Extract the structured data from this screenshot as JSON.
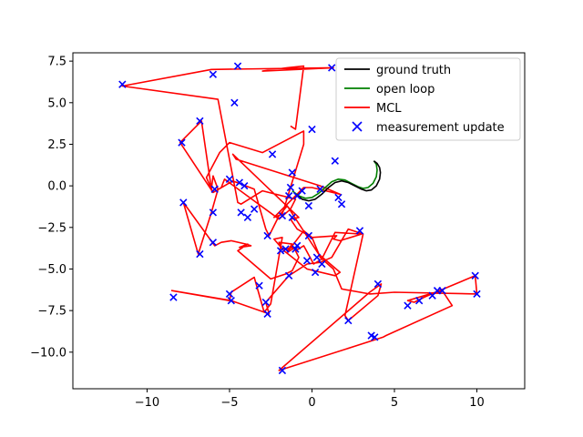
{
  "chart_data": {
    "type": "line",
    "title": "",
    "xlabel": "",
    "ylabel": "",
    "xlim": [
      -14.5,
      12.9
    ],
    "ylim": [
      -12.2,
      8.0
    ],
    "x_ticks": [
      -10,
      -5,
      0,
      5,
      10
    ],
    "x_tick_labels": [
      "−10",
      "−5",
      "0",
      "5",
      "10"
    ],
    "y_ticks": [
      7.5,
      5.0,
      2.5,
      0.0,
      -2.5,
      -5.0,
      -7.5,
      -10.0
    ],
    "y_tick_labels": [
      "7.5",
      "5.0",
      "2.5",
      "0.0",
      "−2.5",
      "−5.0",
      "−7.5",
      "−10.0"
    ],
    "grid": false,
    "legend_position": "top-right",
    "series": [
      {
        "name": "ground truth",
        "kind": "line",
        "color": "#000000",
        "x": [
          -1.0,
          -0.6,
          -0.2,
          0.2,
          0.6,
          1.0,
          1.4,
          1.8,
          2.2,
          2.6,
          3.0,
          3.3,
          3.6,
          3.9,
          4.1,
          4.15,
          4.1,
          3.95,
          3.75
        ],
        "y": [
          -0.5,
          -0.8,
          -0.9,
          -0.8,
          -0.5,
          -0.1,
          0.2,
          0.3,
          0.2,
          0.0,
          -0.2,
          -0.3,
          -0.25,
          0.0,
          0.4,
          0.8,
          1.1,
          1.35,
          1.5
        ]
      },
      {
        "name": "open loop",
        "kind": "line",
        "color": "#008000",
        "x": [
          -1.2,
          -0.8,
          -0.4,
          0.0,
          0.4,
          0.8,
          1.2,
          1.6,
          2.0,
          2.4,
          2.8,
          3.1,
          3.4,
          3.7,
          3.9,
          3.95,
          3.9,
          3.75
        ],
        "y": [
          -0.3,
          -0.6,
          -0.75,
          -0.7,
          -0.45,
          -0.1,
          0.25,
          0.4,
          0.35,
          0.15,
          -0.05,
          -0.15,
          -0.1,
          0.15,
          0.55,
          0.95,
          1.3,
          1.5
        ]
      },
      {
        "name": "MCL",
        "kind": "line",
        "color": "#ff0000",
        "x": [
          -1.5,
          -1.2,
          -2.0,
          -1.8,
          -1.0,
          -1.5,
          -0.5,
          0.0,
          1.5,
          1.3,
          1.7,
          3.0,
          1.4,
          0.6,
          0.1,
          -0.5,
          -1.0,
          -0.8,
          -1.2,
          -1.6,
          -2.5,
          -4.5,
          -3.9,
          -4.4,
          -3.7,
          -4.0,
          -4.9,
          -5.5,
          -5.9,
          -7.8,
          -6.9,
          -6.1,
          -5.7,
          -6.0,
          -6.1,
          -6.7,
          -8.0,
          -6.0,
          -4.8,
          -3.5,
          -2.8,
          -2.6,
          -2.0,
          -1.5,
          0.4,
          1.7,
          1.4,
          -0.3,
          -1.7,
          -2.3,
          -1.8,
          -2.5,
          -2.9,
          -3.5,
          -4.9,
          -5.0,
          -8.5,
          -4.9,
          -2.6,
          -2.8,
          -1.4,
          -0.3,
          0.5,
          1.2,
          2.2,
          3.1,
          2.0,
          2.2,
          4.0,
          4.2,
          3.5,
          -2.0,
          4.3,
          4.5,
          8.5,
          7.9,
          7.5,
          6.8,
          6.2,
          5.8,
          7.5,
          9.9,
          10.0,
          5.0,
          3.5,
          1.8,
          1.3,
          0.5,
          0.0,
          -0.9,
          -1.3,
          -0.8,
          -4.8,
          -4.6,
          0.5,
          1.7,
          0.0,
          -0.5,
          -2.3,
          -1.8,
          -0.5,
          -0.5,
          -3.0,
          -5.0,
          -5.6,
          -6.4,
          -6.0,
          -5.5,
          -5.3,
          -2.0,
          -1.3,
          -1.0,
          -3.0,
          -4.3,
          -4.5,
          -5.7,
          -11.5,
          -6.1,
          1.3,
          -3.0,
          -1.5,
          -0.5,
          -1.0,
          -1.3
        ],
        "y": [
          -3.9,
          -3.5,
          -3.4,
          -3.8,
          -3.7,
          -4.0,
          -2.7,
          -3.1,
          -3.0,
          -3.2,
          -3.3,
          -2.9,
          -2.8,
          -4.4,
          -4.7,
          -3.6,
          -3.9,
          -4.3,
          -5.1,
          -5.3,
          -5.6,
          -3.9,
          -3.5,
          -3.7,
          -3.6,
          -3.5,
          -3.3,
          -3.4,
          -3.6,
          -1.0,
          -4.1,
          -1.6,
          -0.2,
          0.6,
          -0.2,
          3.9,
          2.6,
          -0.4,
          0.3,
          -0.2,
          -2.6,
          -3.0,
          -1.8,
          -1.2,
          -4.1,
          -5.2,
          -5.4,
          -5.0,
          -3.9,
          -3.2,
          -3.1,
          -7.1,
          -7.6,
          -5.5,
          -6.4,
          -6.9,
          -6.3,
          -6.9,
          -7.7,
          -7.0,
          -5.4,
          -4.7,
          -4.6,
          -4.3,
          -2.6,
          -2.9,
          -7.8,
          -8.1,
          -6.6,
          -5.9,
          -6.4,
          -11.1,
          -9.1,
          -9.0,
          -7.2,
          -6.3,
          -6.4,
          -6.7,
          -7.0,
          -6.9,
          -6.4,
          -5.4,
          -6.5,
          -6.4,
          -6.5,
          -6.2,
          -5.0,
          -4.3,
          -3.1,
          -2.6,
          -2.0,
          -1.9,
          1.9,
          1.6,
          0.0,
          -0.5,
          -0.1,
          -0.1,
          -1.9,
          -1.7,
          2.5,
          3.3,
          2.0,
          2.6,
          2.0,
          0.5,
          -0.4,
          -0.1,
          0.4,
          -2.0,
          -1.4,
          -0.8,
          -0.3,
          -1.1,
          -1.0,
          5.2,
          6.0,
          7.0,
          7.1,
          6.9,
          7.1,
          7.2,
          3.4,
          3.6
        ]
      },
      {
        "name": "measurement update",
        "kind": "scatter",
        "color": "#0000ff",
        "x": [
          -11.5,
          -6.0,
          -4.5,
          1.2,
          -4.7,
          -6.8,
          -7.9,
          -2.4,
          0.0,
          1.4,
          -1.2,
          -5.0,
          -4.4,
          -4.1,
          -5.9,
          -7.8,
          -4.3,
          -3.5,
          -3.9,
          -6.0,
          -6.0,
          -6.8,
          -1.3,
          -0.6,
          -1.2,
          -1.8,
          -1.0,
          -0.9,
          0.3,
          -0.2,
          1.6,
          1.8,
          2.9,
          -2.7,
          -1.9,
          -1.6,
          -1.4,
          -0.3,
          0.2,
          0.6,
          0.5,
          -0.9,
          -3.2,
          -5.0,
          -4.9,
          -2.8,
          -2.7,
          -8.4,
          2.2,
          4.0,
          3.6,
          5.8,
          6.5,
          7.3,
          7.6,
          7.9,
          9.9,
          10.0,
          3.8,
          -1.8,
          -0.2,
          -1.4
        ],
        "y": [
          6.1,
          6.7,
          7.2,
          7.1,
          5.0,
          3.9,
          2.6,
          1.9,
          3.4,
          1.5,
          0.8,
          0.4,
          0.2,
          0.0,
          -0.2,
          -1.0,
          -1.6,
          -1.4,
          -1.9,
          -1.6,
          -3.4,
          -4.1,
          -0.1,
          -0.3,
          -1.9,
          -1.8,
          -3.8,
          -3.6,
          -4.3,
          -3.0,
          -0.7,
          -1.1,
          -2.7,
          -3.0,
          -3.9,
          -3.8,
          -5.4,
          -4.5,
          -5.2,
          -4.7,
          -0.2,
          -0.6,
          -6.0,
          -6.5,
          -6.9,
          -7.0,
          -7.7,
          -6.7,
          -8.1,
          -5.9,
          -9.0,
          -7.2,
          -6.9,
          -6.6,
          -6.3,
          -6.3,
          -5.4,
          -6.5,
          -9.1,
          -11.1,
          -1.2,
          -0.6
        ]
      }
    ]
  }
}
